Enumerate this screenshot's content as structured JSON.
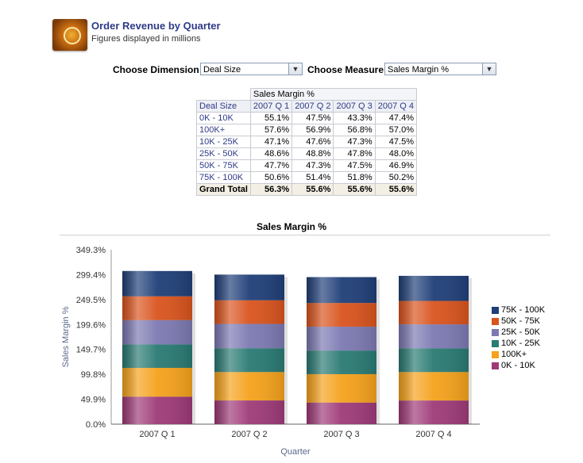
{
  "header": {
    "title": "Order Revenue by Quarter",
    "subtitle": "Figures displayed in millions"
  },
  "controls": {
    "dimension_label": "Choose Dimension",
    "dimension_value": "Deal Size",
    "measure_label": "Choose Measure",
    "measure_value": "Sales Margin %"
  },
  "table": {
    "measure": "Sales Margin %",
    "row_header": "Deal Size",
    "columns": [
      "2007 Q 1",
      "2007 Q 2",
      "2007 Q 3",
      "2007 Q 4"
    ],
    "rows": [
      {
        "label": "0K - 10K",
        "values": [
          "55.1%",
          "47.5%",
          "43.3%",
          "47.4%"
        ]
      },
      {
        "label": "100K+",
        "values": [
          "57.6%",
          "56.9%",
          "56.8%",
          "57.0%"
        ]
      },
      {
        "label": "10K - 25K",
        "values": [
          "47.1%",
          "47.6%",
          "47.3%",
          "47.5%"
        ]
      },
      {
        "label": "25K - 50K",
        "values": [
          "48.6%",
          "48.8%",
          "47.8%",
          "48.0%"
        ]
      },
      {
        "label": "50K - 75K",
        "values": [
          "47.7%",
          "47.3%",
          "47.5%",
          "46.9%"
        ]
      },
      {
        "label": "75K - 100K",
        "values": [
          "50.6%",
          "51.4%",
          "51.8%",
          "50.2%"
        ]
      }
    ],
    "total": {
      "label": "Grand Total",
      "values": [
        "56.3%",
        "55.6%",
        "55.6%",
        "55.6%"
      ]
    }
  },
  "chart_data": {
    "type": "bar",
    "stacked": true,
    "title": "Sales Margin %",
    "xlabel": "Quarter",
    "ylabel": "Sales Margin %",
    "categories": [
      "2007 Q 1",
      "2007 Q 2",
      "2007 Q 3",
      "2007 Q 4"
    ],
    "yticks": [
      "0.0%",
      "49.9%",
      "99.8%",
      "149.7%",
      "199.6%",
      "249.5%",
      "299.4%",
      "349.3%"
    ],
    "ylim": [
      0,
      349.3
    ],
    "legend_position": "right",
    "series": [
      {
        "name": "0K - 10K",
        "color": "#9e3a78",
        "values": [
          55.1,
          47.5,
          43.3,
          47.4
        ]
      },
      {
        "name": "100K+",
        "color": "#f5a21c",
        "values": [
          57.6,
          56.9,
          56.8,
          57.0
        ]
      },
      {
        "name": "10K - 25K",
        "color": "#2a7a73",
        "values": [
          47.1,
          47.6,
          47.3,
          47.5
        ]
      },
      {
        "name": "25K - 50K",
        "color": "#7c79b2",
        "values": [
          48.6,
          48.8,
          47.8,
          48.0
        ]
      },
      {
        "name": "50K - 75K",
        "color": "#d9541e",
        "values": [
          47.7,
          47.3,
          47.5,
          46.9
        ]
      },
      {
        "name": "75K - 100K",
        "color": "#203f78",
        "values": [
          50.6,
          51.4,
          51.8,
          50.2
        ]
      }
    ]
  }
}
